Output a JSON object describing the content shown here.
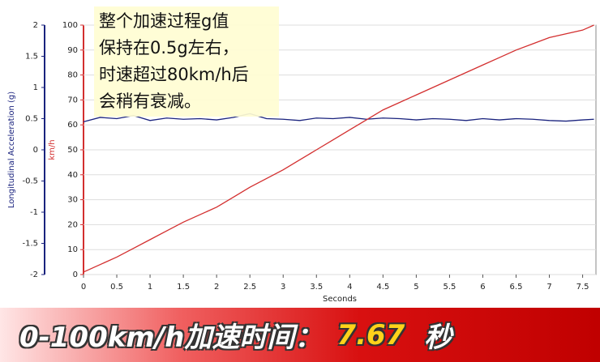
{
  "chart_data": {
    "type": "line",
    "x": [
      0,
      0.25,
      0.5,
      0.75,
      1,
      1.25,
      1.5,
      1.75,
      2,
      2.25,
      2.5,
      2.75,
      3,
      3.25,
      3.5,
      3.75,
      4,
      4.25,
      4.5,
      4.75,
      5,
      5.25,
      5.5,
      5.75,
      6,
      6.25,
      6.5,
      6.75,
      7,
      7.25,
      7.5,
      7.67
    ],
    "series": [
      {
        "name": "Longitudinal Acceleration (g)",
        "color": "#1a237e",
        "axis": "y",
        "values": [
          0.45,
          0.52,
          0.5,
          0.55,
          0.47,
          0.51,
          0.49,
          0.5,
          0.48,
          0.52,
          0.58,
          0.5,
          0.49,
          0.47,
          0.51,
          0.5,
          0.52,
          0.49,
          0.51,
          0.5,
          0.48,
          0.5,
          0.49,
          0.47,
          0.5,
          0.48,
          0.5,
          0.49,
          0.47,
          0.46,
          0.48,
          0.49
        ]
      },
      {
        "name": "km/h",
        "color": "#d32f2f",
        "axis": "y2",
        "values": [
          1,
          4,
          7,
          10.5,
          14,
          17.5,
          21,
          24,
          27,
          31,
          35,
          38.5,
          42,
          46,
          50,
          54,
          58,
          62,
          66,
          69,
          72,
          75,
          78,
          81,
          84,
          87,
          90,
          92.5,
          95,
          96.5,
          98,
          100
        ]
      }
    ],
    "xlabel": "Seconds",
    "ylabel": "Longitudinal Acceleration (g)",
    "y2label": "km/h",
    "xlim": [
      0,
      7.7
    ],
    "xticks": [
      0,
      0.5,
      1,
      1.5,
      2,
      2.5,
      3,
      3.5,
      4,
      4.5,
      5,
      5.5,
      6,
      6.5,
      7,
      7.5
    ],
    "ylim": [
      -2,
      2
    ],
    "yticks": [
      -2,
      -1.5,
      -1,
      -0.5,
      0,
      0.5,
      1,
      1.5,
      2
    ],
    "y2lim": [
      0,
      100
    ],
    "y2ticks": [
      0,
      10,
      20,
      30,
      40,
      50,
      60,
      70,
      80,
      90,
      100
    ],
    "grid": true,
    "annotation": [
      "整个加速过程g值",
      "保持在0.5g左右，",
      "时速超过80km/h后",
      "会稍有衰减。"
    ]
  },
  "banner": {
    "label": "0-100km/h加速时间：",
    "value": "7.67",
    "unit": "秒"
  }
}
